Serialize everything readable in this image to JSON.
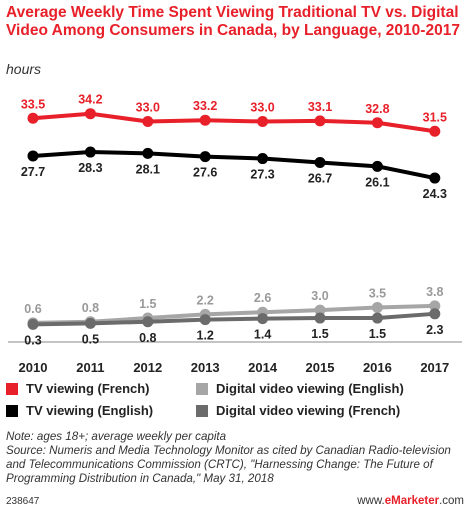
{
  "title": "Average Weekly Time Spent Viewing Traditional TV vs. Digital Video Among Consumers in Canada, by Language, 2010-2017",
  "subtitle": "hours",
  "note": "Note: ages 18+; average weekly per capita",
  "source": "Source: Numeris and Media Technology Monitor as cited by Canadian Radio-television and Telecommunications Commission (CRTC), \"Harnessing Change: The Future of Programming Distribution in Canada,\" May 31, 2018",
  "footer": {
    "id": "238647",
    "brand_prefix": "www.",
    "brand_name": "eMarketer",
    "brand_suffix": ".com"
  },
  "chart_data": {
    "type": "line",
    "x": [
      "2010",
      "2011",
      "2012",
      "2013",
      "2014",
      "2015",
      "2016",
      "2017"
    ],
    "ylim": [
      0,
      36
    ],
    "grid": false,
    "legend_position": "bottom",
    "series": [
      {
        "name": "TV viewing (French)",
        "color": "#e8202a",
        "values": [
          33.5,
          34.2,
          33.0,
          33.2,
          33.0,
          33.1,
          32.8,
          31.5
        ],
        "labels": [
          "33.5",
          "34.2",
          "33.0",
          "33.2",
          "33.0",
          "33.1",
          "32.8",
          "31.5"
        ],
        "label_pos": "above"
      },
      {
        "name": "TV viewing (English)",
        "color": "#000000",
        "values": [
          27.7,
          28.3,
          28.1,
          27.6,
          27.3,
          26.7,
          26.1,
          24.3
        ],
        "labels": [
          "27.7",
          "28.3",
          "28.1",
          "27.6",
          "27.3",
          "26.7",
          "26.1",
          "24.3"
        ],
        "label_pos": "below"
      },
      {
        "name": "Digital video viewing (English)",
        "color": "#a6a6a6",
        "values": [
          0.6,
          0.8,
          1.5,
          2.2,
          2.6,
          3.0,
          3.5,
          3.8
        ],
        "labels": [
          "0.6",
          "0.8",
          "1.5",
          "2.2",
          "2.6",
          "3.0",
          "3.5",
          "3.8"
        ],
        "label_pos": "above"
      },
      {
        "name": "Digital video viewing (French)",
        "color": "#6b6b6b",
        "values": [
          0.3,
          0.5,
          0.8,
          1.2,
          1.4,
          1.5,
          1.5,
          2.3
        ],
        "labels": [
          "0.3",
          "0.5",
          "0.8",
          "1.2",
          "1.4",
          "1.5",
          "1.5",
          "2.3"
        ],
        "label_pos": "below"
      }
    ]
  }
}
